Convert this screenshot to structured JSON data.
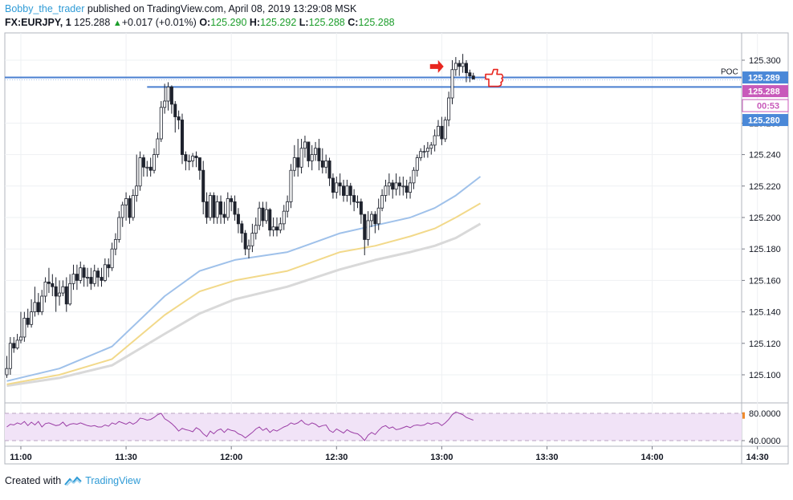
{
  "header": {
    "author": "Bobby_the_trader",
    "published": "published on TradingView.com, April 08, 2019 13:29:08 MSK",
    "symbol": "FX:EURJPY, 1",
    "last": "125.288",
    "change": "+0.017 (+0.01%)",
    "o_label": "O:",
    "o_value": "125.290",
    "h_label": "H:",
    "h_value": "125.292",
    "l_label": "L:",
    "l_value": "125.288",
    "c_label": "C:",
    "c_value": "125.288"
  },
  "footer": {
    "created_with": "Created with",
    "brand": "TradingView"
  },
  "colors": {
    "level_line": "#4a7fd0",
    "ema_fast": "#9fc1ea",
    "ema_mid": "#f2d98a",
    "ema_slow": "#d9d9d9",
    "rsi_line": "#9b3ea6",
    "rsi_band": "#f1e3f7",
    "candle": "#1e222d",
    "label_blue": "#4a88d8",
    "label_pink": "#c85aba",
    "label_orange": "#f08a2c",
    "arrow": "#e8261f"
  },
  "chart_data": [
    {
      "type": "candlestick",
      "title": "",
      "x_ticks": [
        "11:00",
        "11:30",
        "12:00",
        "12:30",
        "13:00",
        "13:30",
        "14:00",
        "14:30"
      ],
      "y_ticks": [
        "125.300",
        "125.260",
        "125.240",
        "125.220",
        "125.200",
        "125.180",
        "125.160",
        "125.140",
        "125.120",
        "125.100"
      ],
      "ylim": [
        125.089,
        125.308
      ],
      "x_start": "10:56",
      "interval_minutes": 1,
      "close": [
        125.104,
        125.12,
        125.117,
        125.122,
        125.124,
        125.136,
        125.132,
        125.14,
        125.146,
        125.14,
        125.15,
        125.159,
        125.158,
        125.156,
        125.15,
        125.152,
        125.156,
        125.145,
        125.158,
        125.164,
        125.16,
        125.168,
        125.162,
        125.162,
        125.158,
        125.166,
        125.162,
        125.16,
        125.17,
        125.168,
        125.18,
        125.186,
        125.2,
        125.208,
        125.212,
        125.2,
        125.214,
        125.22,
        125.238,
        125.232,
        125.232,
        125.23,
        125.24,
        125.25,
        125.27,
        125.274,
        125.283,
        125.272,
        125.264,
        125.262,
        125.24,
        125.236,
        125.236,
        125.239,
        125.238,
        125.23,
        125.21,
        125.2,
        125.214,
        125.2,
        125.21,
        125.202,
        125.2,
        125.212,
        125.21,
        125.202,
        125.196,
        125.19,
        125.18,
        125.182,
        125.19,
        125.195,
        125.206,
        125.198,
        125.205,
        125.192,
        125.194,
        125.192,
        125.196,
        125.204,
        125.21,
        125.23,
        125.238,
        125.232,
        125.244,
        125.248,
        125.236,
        125.24,
        125.244,
        125.236,
        125.232,
        125.236,
        125.225,
        125.216,
        125.222,
        125.22,
        125.214,
        125.22,
        125.214,
        125.21,
        125.21,
        125.202,
        125.186,
        125.198,
        125.202,
        125.196,
        125.206,
        125.214,
        125.22,
        125.222,
        125.218,
        125.222,
        125.22,
        125.22,
        125.216,
        125.222,
        125.23,
        125.238,
        125.242,
        125.242,
        125.244,
        125.246,
        125.252,
        125.258,
        125.25,
        125.262,
        125.276,
        125.294,
        125.298,
        125.296,
        125.298,
        125.292,
        125.29,
        125.288
      ],
      "low": [
        125.098,
        125.1,
        125.114,
        125.116,
        125.12,
        125.121,
        125.13,
        125.13,
        125.137,
        125.138,
        125.138,
        125.146,
        125.152,
        125.15,
        125.14,
        125.144,
        125.15,
        125.14,
        125.144,
        125.154,
        125.154,
        125.158,
        125.156,
        125.156,
        125.154,
        125.156,
        125.156,
        125.156,
        125.159,
        125.162,
        125.166,
        125.176,
        125.184,
        125.194,
        125.198,
        125.196,
        125.198,
        125.21,
        125.217,
        125.226,
        125.226,
        125.226,
        125.228,
        125.238,
        125.248,
        125.266,
        125.268,
        125.266,
        125.254,
        125.256,
        125.234,
        125.23,
        125.23,
        125.232,
        125.232,
        125.224,
        125.202,
        125.196,
        125.198,
        125.196,
        125.196,
        125.196,
        125.196,
        125.198,
        125.204,
        125.198,
        125.19,
        125.184,
        125.176,
        125.174,
        125.178,
        125.186,
        125.192,
        125.194,
        125.196,
        125.188,
        125.188,
        125.188,
        125.19,
        125.192,
        125.2,
        125.206,
        125.226,
        125.226,
        125.228,
        125.238,
        125.232,
        125.23,
        125.236,
        125.23,
        125.228,
        125.228,
        125.22,
        125.212,
        125.212,
        125.214,
        125.21,
        125.21,
        125.208,
        125.204,
        125.206,
        125.196,
        125.176,
        125.182,
        125.194,
        125.19,
        125.192,
        125.204,
        125.21,
        125.214,
        125.212,
        125.214,
        125.214,
        125.214,
        125.212,
        125.212,
        125.218,
        125.226,
        125.236,
        125.238,
        125.238,
        125.24,
        125.242,
        125.252,
        125.246,
        125.248,
        125.258,
        125.272,
        125.29,
        125.29,
        125.292,
        125.286,
        125.286,
        125.288
      ],
      "high": [
        125.112,
        125.124,
        125.124,
        125.126,
        125.14,
        125.14,
        125.142,
        125.148,
        125.156,
        125.152,
        125.154,
        125.162,
        125.168,
        125.164,
        125.162,
        125.16,
        125.16,
        125.162,
        125.164,
        125.17,
        125.17,
        125.172,
        125.17,
        125.168,
        125.168,
        125.17,
        125.168,
        125.168,
        125.174,
        125.174,
        125.184,
        125.19,
        125.204,
        125.21,
        125.216,
        125.214,
        125.218,
        125.24,
        125.242,
        125.24,
        125.236,
        125.238,
        125.244,
        125.254,
        125.274,
        125.285,
        125.286,
        125.284,
        125.274,
        125.268,
        125.266,
        125.242,
        125.24,
        125.241,
        125.242,
        125.238,
        125.236,
        125.216,
        125.216,
        125.216,
        125.214,
        125.214,
        125.21,
        125.216,
        125.214,
        125.214,
        125.206,
        125.198,
        125.192,
        125.186,
        125.196,
        125.2,
        125.21,
        125.21,
        125.21,
        125.206,
        125.2,
        125.2,
        125.2,
        125.208,
        125.214,
        125.234,
        125.246,
        125.25,
        125.25,
        125.252,
        125.248,
        125.246,
        125.248,
        125.25,
        125.244,
        125.24,
        125.238,
        125.228,
        125.226,
        125.228,
        125.224,
        125.224,
        125.222,
        125.218,
        125.214,
        125.212,
        125.202,
        125.204,
        125.204,
        125.204,
        125.212,
        125.218,
        125.224,
        125.228,
        125.224,
        125.228,
        125.226,
        125.226,
        125.224,
        125.226,
        125.232,
        125.24,
        125.244,
        125.246,
        125.248,
        125.248,
        125.256,
        125.262,
        125.264,
        125.264,
        125.28,
        125.3,
        125.302,
        125.3,
        125.304,
        125.3,
        125.294,
        125.292
      ],
      "ema_fast": [
        [
          0,
          125.096
        ],
        [
          15,
          125.104
        ],
        [
          30,
          125.118
        ],
        [
          45,
          125.15
        ],
        [
          55,
          125.166
        ],
        [
          65,
          125.173
        ],
        [
          80,
          125.178
        ],
        [
          95,
          125.19
        ],
        [
          105,
          125.195
        ],
        [
          115,
          125.2
        ],
        [
          122,
          125.206
        ],
        [
          128,
          125.214
        ],
        [
          135,
          125.226
        ]
      ],
      "ema_mid": [
        [
          0,
          125.094
        ],
        [
          15,
          125.1
        ],
        [
          30,
          125.11
        ],
        [
          45,
          125.138
        ],
        [
          55,
          125.153
        ],
        [
          65,
          125.16
        ],
        [
          80,
          125.166
        ],
        [
          95,
          125.178
        ],
        [
          105,
          125.182
        ],
        [
          115,
          125.188
        ],
        [
          122,
          125.193
        ],
        [
          128,
          125.2
        ],
        [
          135,
          125.209
        ]
      ],
      "ema_slow": [
        [
          0,
          125.093
        ],
        [
          15,
          125.098
        ],
        [
          30,
          125.106
        ],
        [
          45,
          125.126
        ],
        [
          55,
          125.139
        ],
        [
          65,
          125.148
        ],
        [
          80,
          125.156
        ],
        [
          95,
          125.167
        ],
        [
          105,
          125.173
        ],
        [
          115,
          125.178
        ],
        [
          122,
          125.182
        ],
        [
          128,
          125.187
        ],
        [
          135,
          125.196
        ]
      ],
      "levels": [
        {
          "value": 125.289,
          "label": "125.289",
          "name": "POC"
        },
        {
          "value": 125.283,
          "label": ""
        }
      ],
      "price_labels": [
        "125.289",
        "125.288",
        "00:53",
        "125.280"
      ],
      "annotations": [
        "POC"
      ]
    },
    {
      "type": "line",
      "title": "",
      "y_ticks": [
        "80.0000",
        "40.0000"
      ],
      "ylim": [
        32,
        88
      ],
      "band": [
        40,
        80
      ],
      "values": [
        60,
        64,
        63,
        66,
        64,
        68,
        62,
        67,
        63,
        68,
        60,
        65,
        66,
        64,
        62,
        63,
        67,
        61,
        64,
        65,
        64,
        66,
        64,
        62,
        61,
        62,
        60,
        60,
        63,
        61,
        66,
        64,
        68,
        66,
        64,
        67,
        64,
        67,
        73,
        72,
        70,
        71,
        74,
        78,
        80,
        72,
        69,
        65,
        60,
        54,
        58,
        56,
        55,
        53,
        59,
        56,
        50,
        46,
        54,
        50,
        55,
        57,
        52,
        57,
        55,
        54,
        50,
        48,
        44,
        48,
        52,
        57,
        60,
        55,
        58,
        52,
        56,
        54,
        57,
        60,
        62,
        66,
        64,
        66,
        70,
        65,
        63,
        66,
        64,
        60,
        62,
        63,
        55,
        52,
        57,
        54,
        51,
        56,
        53,
        51,
        50,
        46,
        40,
        48,
        52,
        49,
        55,
        60,
        62,
        58,
        60,
        56,
        57,
        59,
        61,
        59,
        62,
        63,
        62,
        63,
        66,
        64,
        66,
        66,
        62,
        66,
        71,
        78,
        82,
        80,
        78,
        74,
        72,
        70
      ]
    }
  ]
}
